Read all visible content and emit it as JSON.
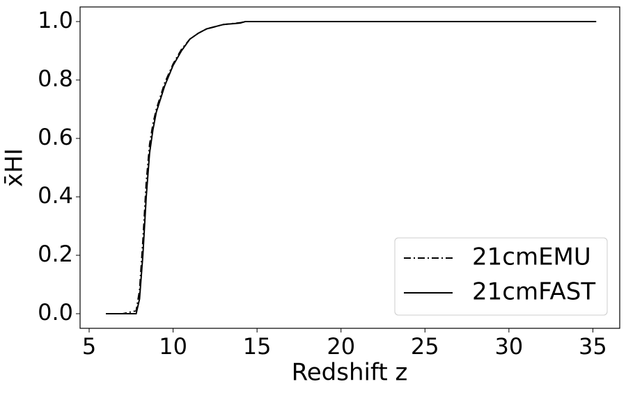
{
  "chart_data": {
    "type": "line",
    "xlabel": "Redshift z",
    "ylabel": "x̄HI",
    "x": [
      6,
      7,
      7.8,
      8,
      8.2,
      8.4,
      8.6,
      8.8,
      9,
      9.5,
      10,
      10.5,
      11,
      11.5,
      12,
      13,
      14,
      14.3,
      15,
      20,
      25,
      30,
      35.2
    ],
    "series": [
      {
        "name": "21cmEMU",
        "color": "#000000",
        "linestyle": "dashdot",
        "values": [
          0,
          0,
          0.01,
          0.08,
          0.25,
          0.45,
          0.58,
          0.65,
          0.7,
          0.79,
          0.855,
          0.905,
          0.94,
          0.96,
          0.975,
          0.99,
          0.996,
          1,
          1,
          1,
          1,
          1,
          1
        ]
      },
      {
        "name": "21cmFAST",
        "color": "#000000",
        "linestyle": "solid",
        "values": [
          0,
          0,
          0,
          0.05,
          0.2,
          0.4,
          0.55,
          0.63,
          0.69,
          0.78,
          0.85,
          0.9,
          0.94,
          0.96,
          0.975,
          0.99,
          0.995,
          1,
          1,
          1,
          1,
          1,
          1
        ]
      }
    ],
    "xlim": [
      4.46,
      36.6
    ],
    "ylim": [
      -0.05,
      1.05
    ],
    "xticks": [
      5,
      10,
      15,
      20,
      25,
      30,
      35
    ],
    "yticks": [
      {
        "value": 0,
        "label": "0.0"
      },
      0.2,
      0.4,
      0.6,
      0.8,
      {
        "value": 1,
        "label": "1.0"
      }
    ],
    "legend": "lower right"
  }
}
